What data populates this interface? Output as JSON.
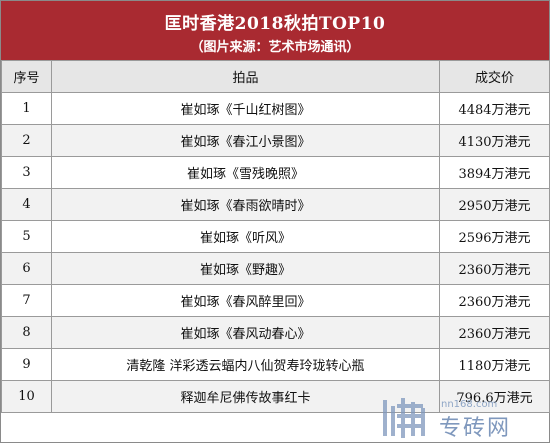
{
  "header": {
    "title": "匡时香港2018秋拍TOP10",
    "subtitle": "（图片来源：艺术市场通讯）"
  },
  "table": {
    "columns": [
      "序号",
      "拍品",
      "成交价"
    ],
    "rows": [
      {
        "index": "1",
        "item": "崔如琢《千山红树图》",
        "price": "4484万港元"
      },
      {
        "index": "2",
        "item": "崔如琢《春江小景图》",
        "price": "4130万港元"
      },
      {
        "index": "3",
        "item": "崔如琢《雪残晚照》",
        "price": "3894万港元"
      },
      {
        "index": "4",
        "item": "崔如琢《春雨欲晴时》",
        "price": "2950万港元"
      },
      {
        "index": "5",
        "item": "崔如琢《听风》",
        "price": "2596万港元"
      },
      {
        "index": "6",
        "item": "崔如琢《野趣》",
        "price": "2360万港元"
      },
      {
        "index": "7",
        "item": "崔如琢《春风醉里回》",
        "price": "2360万港元"
      },
      {
        "index": "8",
        "item": "崔如琢《春风动春心》",
        "price": "2360万港元"
      },
      {
        "index": "9",
        "item": "清乾隆 洋彩透云蝠内八仙贺寿玲珑转心瓶",
        "price": "1180万港元"
      },
      {
        "index": "10",
        "item": "释迦牟尼佛传故事红卡",
        "price": "796.6万港元"
      }
    ]
  },
  "watermark": {
    "url": "nn168.com",
    "name": "专砖网",
    "logo_icon": "grid-logo-icon",
    "color": "#7f98bd"
  }
}
